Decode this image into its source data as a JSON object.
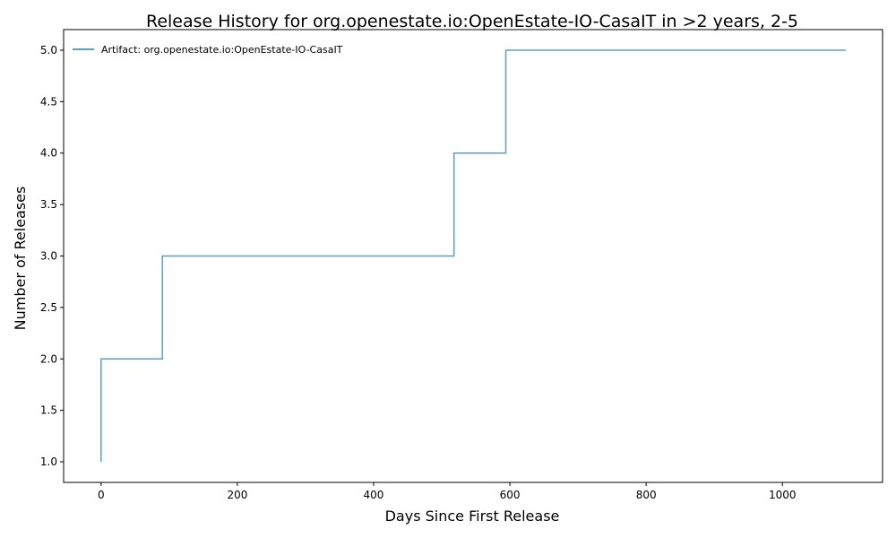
{
  "chart_data": {
    "type": "line",
    "step": "post",
    "title": "Release History for org.openestate.io:OpenEstate-IO-CasaIT in >2 years, 2-5",
    "xlabel": "Days Since First Release",
    "ylabel": "Number of Releases",
    "xlim": [
      -55,
      1147
    ],
    "ylim": [
      0.8,
      5.2
    ],
    "xticks": [
      0,
      200,
      400,
      600,
      800,
      1000
    ],
    "yticks": [
      1.0,
      1.5,
      2.0,
      2.5,
      3.0,
      3.5,
      4.0,
      4.5,
      5.0
    ],
    "xtick_labels": [
      "0",
      "200",
      "400",
      "600",
      "800",
      "1000"
    ],
    "ytick_labels": [
      "1.0",
      "1.5",
      "2.0",
      "2.5",
      "3.0",
      "3.5",
      "4.0",
      "4.5",
      "5.0"
    ],
    "grid": false,
    "legend_position": "top-left",
    "series": [
      {
        "name": "Artifact: org.openestate.io:OpenEstate-IO-CasaIT",
        "color": "#5b9ec9",
        "x": [
          0,
          0,
          90,
          518,
          594,
          1093
        ],
        "y": [
          1,
          2,
          3,
          4,
          5,
          5
        ]
      }
    ]
  }
}
